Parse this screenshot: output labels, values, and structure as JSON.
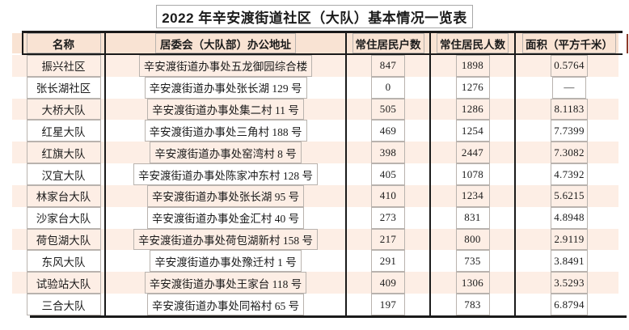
{
  "title": "2022 年辛安渡街道社区（大队）基本情况一览表",
  "table": {
    "headers": [
      "名称",
      "居委会（大队部）办公地址",
      "常住居民户数",
      "常住居民人数",
      "面积（平方千米）"
    ],
    "rows": [
      {
        "name": "振兴社区",
        "address": "辛安渡街道办事处五龙御园综合楼",
        "households": "847",
        "population": "1898",
        "area": "0.5764"
      },
      {
        "name": "张长湖社区",
        "address": "辛安渡街道办事处张长湖 129 号",
        "households": "0",
        "population": "1276",
        "area": "—"
      },
      {
        "name": "大桥大队",
        "address": "辛安渡街道办事处集二村 11 号",
        "households": "505",
        "population": "1286",
        "area": "8.1183"
      },
      {
        "name": "红星大队",
        "address": "辛安渡街道办事处三角村 188 号",
        "households": "469",
        "population": "1254",
        "area": "7.7399"
      },
      {
        "name": "红旗大队",
        "address": "辛安渡街道办事处窑湾村 8 号",
        "households": "398",
        "population": "2447",
        "area": "7.3082"
      },
      {
        "name": "汉宜大队",
        "address": "辛安渡街道办事处陈家冲东村 128 号",
        "households": "405",
        "population": "1078",
        "area": "4.7392"
      },
      {
        "name": "林家台大队",
        "address": "辛安渡街道办事处张长湖 95 号",
        "households": "410",
        "population": "1234",
        "area": "5.6215"
      },
      {
        "name": "沙家台大队",
        "address": "辛安渡街道办事处金汇村 40 号",
        "households": "273",
        "population": "831",
        "area": "4.8948"
      },
      {
        "name": "荷包湖大队",
        "address": "辛安渡街道办事处荷包湖新村 158 号",
        "households": "217",
        "population": "800",
        "area": "2.9119"
      },
      {
        "name": "东风大队",
        "address": "辛安渡街道办事处豫迁村 1 号",
        "households": "291",
        "population": "735",
        "area": "3.8491"
      },
      {
        "name": "试验站大队",
        "address": "辛安渡街道办事处王家台 118 号",
        "households": "409",
        "population": "1306",
        "area": "3.5293"
      },
      {
        "name": "三合大队",
        "address": "辛安渡街道办事处同裕村 65 号",
        "households": "197",
        "population": "783",
        "area": "6.8794"
      }
    ]
  },
  "colors": {
    "stripe": "#fdeee5",
    "header_bg": "#f9e3d3",
    "border": "#1a1a1a",
    "textbox_border": "#b9b3ae",
    "accent_tick": "#8e3b2b"
  }
}
